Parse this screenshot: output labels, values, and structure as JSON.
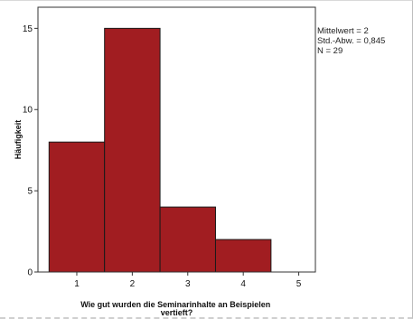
{
  "chart_data": {
    "type": "bar",
    "subtype": "histogram",
    "bins": [
      {
        "from": 0.5,
        "to": 1.5,
        "count": 8
      },
      {
        "from": 1.5,
        "to": 2.5,
        "count": 15
      },
      {
        "from": 2.5,
        "to": 3.5,
        "count": 4
      },
      {
        "from": 3.5,
        "to": 4.5,
        "count": 2
      }
    ],
    "xlabel": "Wie gut wurden die Seminarinhalte an Beispielen vertieft?",
    "xlabel_lines": [
      "Wie gut wurden die Seminarinhalte an Beispielen",
      "vertieft?"
    ],
    "ylabel": "Häufigkeit",
    "x_ticks": [
      "1",
      "2",
      "3",
      "4",
      "5"
    ],
    "y_ticks": [
      "0",
      "5",
      "10",
      "15"
    ],
    "xlim": [
      0.3,
      5.3
    ],
    "ylim": [
      0,
      16.3
    ],
    "grid": false,
    "bar_color": "#a11d21",
    "stats": [
      "Mittelwert = 2",
      "Std.-Abw. = 0,845",
      "N = 29"
    ],
    "stats_placement": "right"
  }
}
